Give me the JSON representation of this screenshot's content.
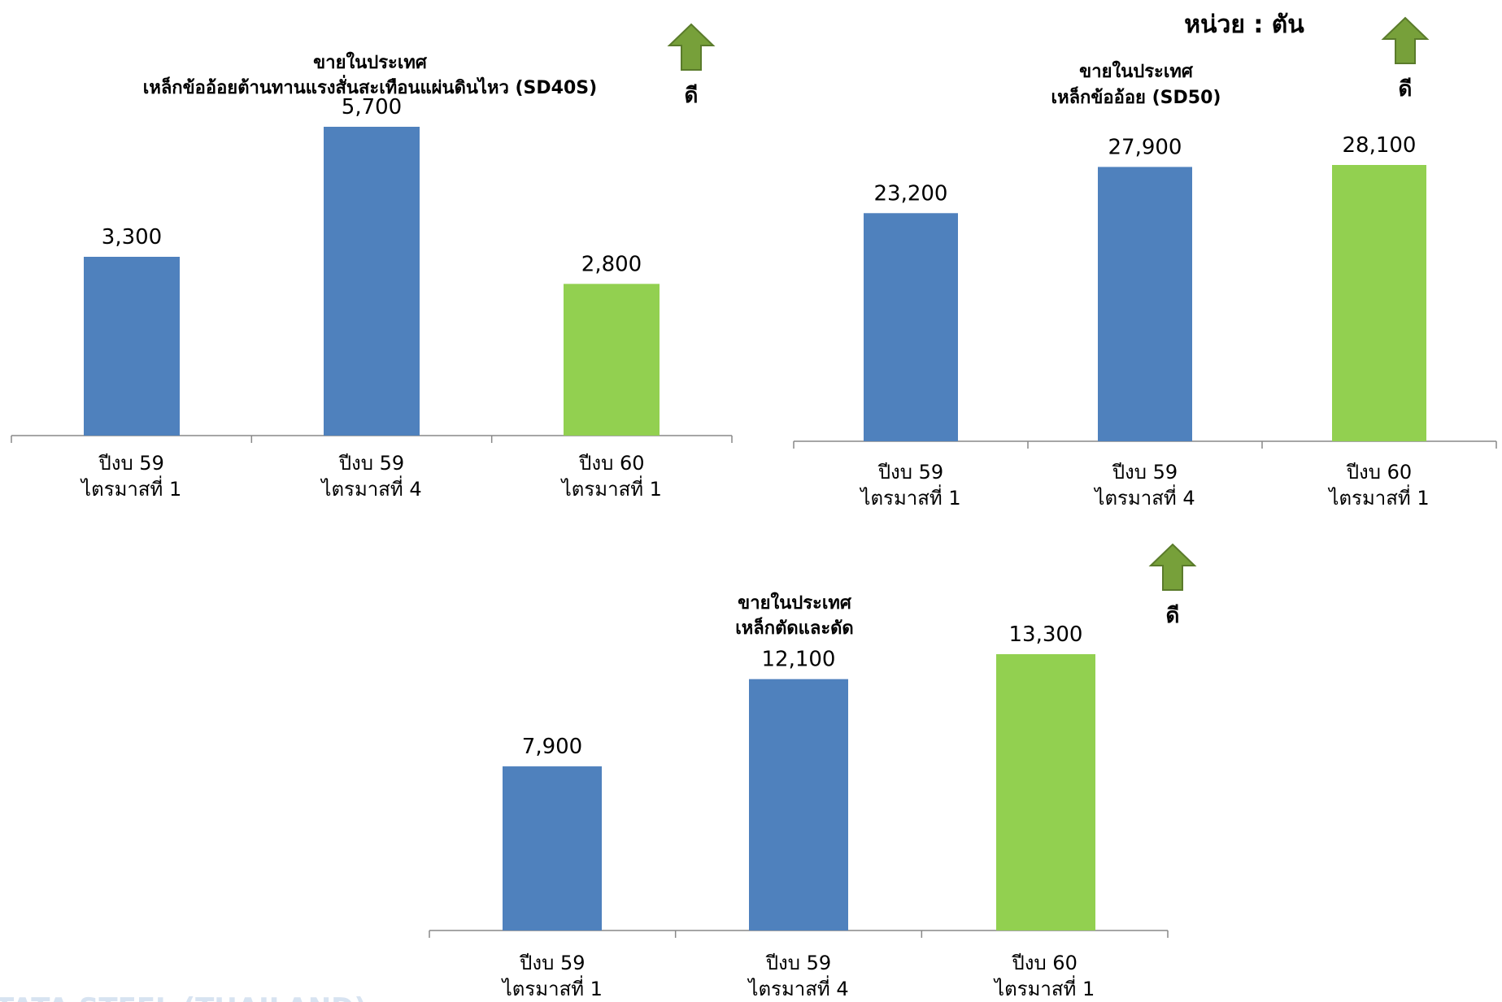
{
  "unit_label": "หน่วย : ตัน",
  "good_label": "ดี",
  "colors": {
    "previous_period": "#4f81bd",
    "current_period": "#92d050",
    "good_arrow": "#77a03a",
    "good_arrow_border": "#5a7b2b",
    "axis": "#888888"
  },
  "chart_data": [
    {
      "type": "bar",
      "title": "ขายในประเทศ",
      "subtitle": "เหล็กข้ออ้อยต้านทานแรงสั่นสะเทือนแผ่นดินไหว (SD40S)",
      "categories": [
        [
          "ปีงบ 59",
          "ไตรมาสที่ 1"
        ],
        [
          "ปีงบ 59",
          "ไตรมาสที่ 4"
        ],
        [
          "ปีงบ 60",
          "ไตรมาสที่ 1"
        ]
      ],
      "values": [
        3300,
        5700,
        2800
      ],
      "value_labels": [
        "3,300",
        "5,700",
        "2,800"
      ],
      "ylim": [
        0,
        6500
      ],
      "grid": false,
      "trend": "up"
    },
    {
      "type": "bar",
      "title": "ขายในประเทศ",
      "subtitle": "เหล็กข้ออ้อย (SD50)",
      "categories": [
        [
          "ปีงบ 59",
          "ไตรมาสที่ 1"
        ],
        [
          "ปีงบ 59",
          "ไตรมาสที่ 4"
        ],
        [
          "ปีงบ 60",
          "ไตรมาสที่ 1"
        ]
      ],
      "values": [
        23200,
        27900,
        28100
      ],
      "value_labels": [
        "23,200",
        "27,900",
        "28,100"
      ],
      "ylim": [
        0,
        36000
      ],
      "grid": false,
      "trend": "up"
    },
    {
      "type": "bar",
      "title": "ขายในประเทศ",
      "subtitle": "เหล็กตัดและดัด",
      "categories": [
        [
          "ปีงบ 59",
          "ไตรมาสที่ 1"
        ],
        [
          "ปีงบ 59",
          "ไตรมาสที่ 4"
        ],
        [
          "ปีงบ 60",
          "ไตรมาสที่ 1"
        ]
      ],
      "values": [
        7900,
        12100,
        13300
      ],
      "value_labels": [
        "7,900",
        "12,100",
        "13,300"
      ],
      "ylim": [
        0,
        17000
      ],
      "grid": false,
      "trend": "up"
    }
  ],
  "footer_logo_text": "TATA STEEL (THAILAND)"
}
